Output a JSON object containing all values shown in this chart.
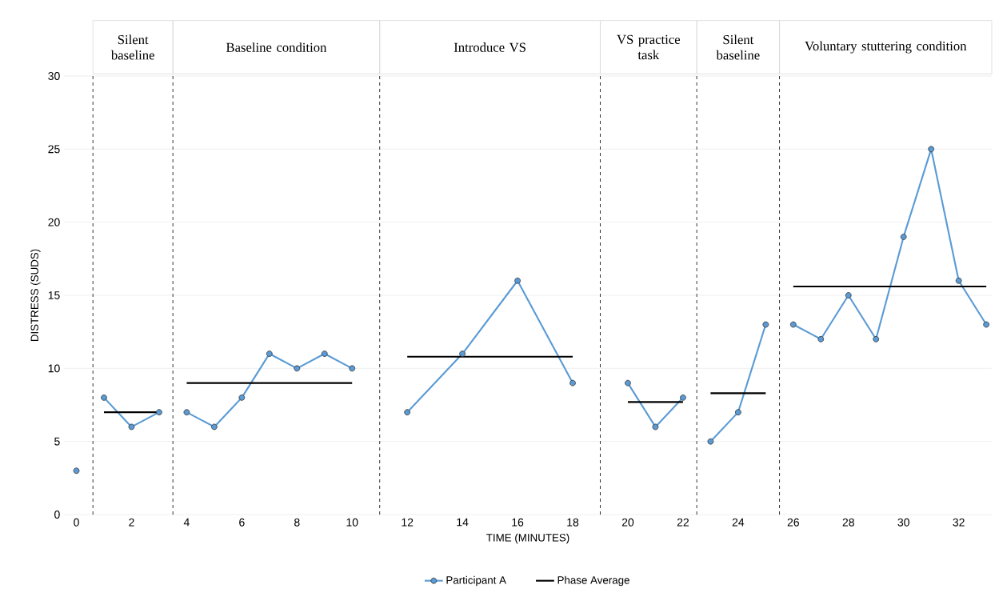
{
  "chart_data": {
    "type": "line",
    "xlabel": "TIME (MINUTES)",
    "ylabel": "DISTRESS (SUDS)",
    "annotations": [
      "Silent baseline",
      "Baseline condition",
      "Introduce VS",
      "VS practice task",
      "Silent baseline",
      "Voluntary stuttering condition"
    ],
    "xlim": [
      -0.45,
      33.2
    ],
    "xticks": [
      0,
      2,
      4,
      6,
      8,
      10,
      12,
      14,
      16,
      18,
      20,
      22,
      24,
      26,
      28,
      30,
      32
    ],
    "ylim": [
      0,
      30
    ],
    "yticks": [
      0,
      5,
      10,
      15,
      20,
      25,
      30
    ],
    "grid": "y",
    "legend": "bottom",
    "ref_lines": [
      {
        "axis": "x",
        "value": 0.6,
        "line_style": "dashed",
        "color": "#000000"
      },
      {
        "axis": "x",
        "value": 3.5,
        "line_style": "dashed",
        "color": "#000000"
      },
      {
        "axis": "x",
        "value": 11,
        "line_style": "dashed",
        "color": "#000000"
      },
      {
        "axis": "x",
        "value": 19,
        "line_style": "dashed",
        "color": "#000000"
      },
      {
        "axis": "x",
        "value": 22.5,
        "line_style": "dashed",
        "color": "#000000"
      },
      {
        "axis": "x",
        "value": 25.5,
        "line_style": "dashed",
        "color": "#000000"
      }
    ],
    "series": [
      {
        "name": "Participant A",
        "color": "#5b9bd5",
        "marker": "circle",
        "x": [
          0,
          0.6,
          1,
          2,
          3,
          3.5,
          4,
          5,
          6,
          7,
          8,
          9,
          10,
          11,
          12,
          14,
          16,
          18,
          19,
          20,
          21,
          22,
          22.5,
          23,
          24,
          25,
          25.5,
          26,
          27,
          28,
          29,
          30,
          31,
          32,
          33
        ],
        "values": [
          3,
          null,
          8,
          6,
          7,
          null,
          7,
          6,
          8,
          11,
          10,
          11,
          10,
          null,
          7,
          11,
          16,
          9,
          null,
          9,
          6,
          8,
          null,
          5,
          7,
          13,
          null,
          13,
          12,
          15,
          12,
          19,
          25,
          16,
          13
        ]
      },
      {
        "name": "Phase Average",
        "color": "#000000",
        "marker": "none",
        "x": [
          1,
          3,
          3.5,
          4,
          10,
          11,
          12,
          18,
          19,
          20,
          22,
          22.5,
          23,
          25,
          25.5,
          26,
          33
        ],
        "values": [
          7,
          7,
          null,
          9,
          9,
          null,
          10.8,
          10.8,
          null,
          7.7,
          7.7,
          null,
          8.3,
          8.3,
          null,
          15.6,
          15.6
        ]
      }
    ]
  }
}
